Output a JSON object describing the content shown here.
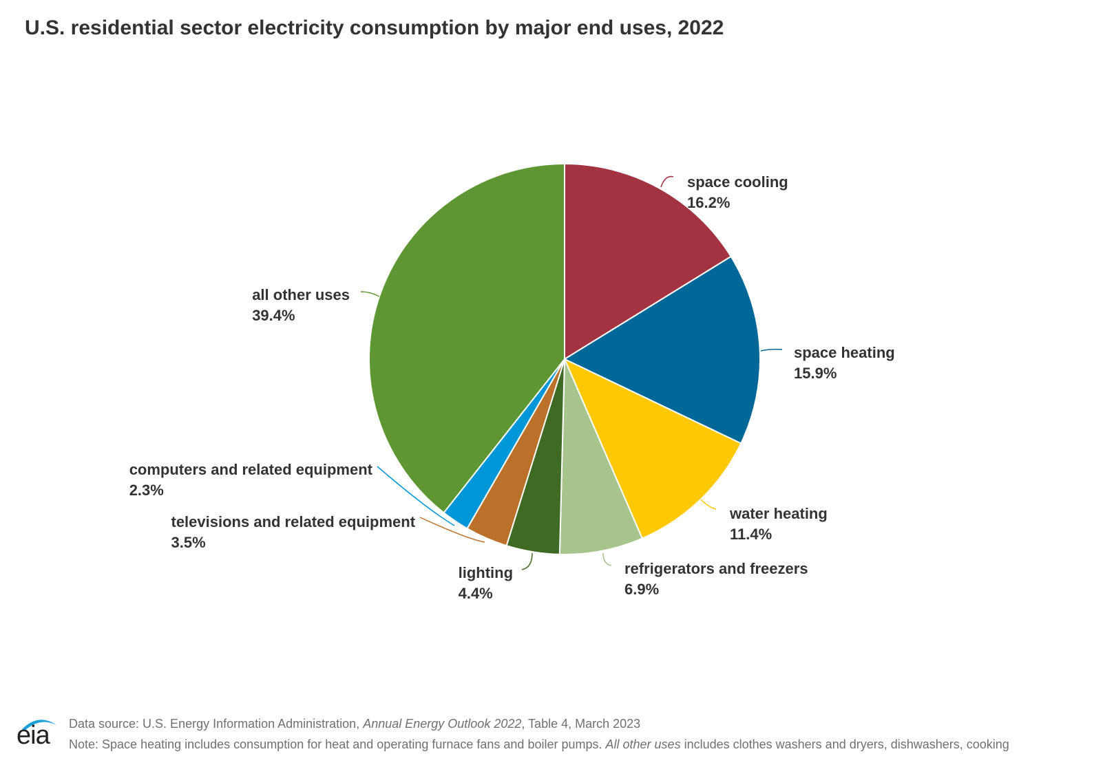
{
  "chart_data": {
    "type": "pie",
    "title": "U.S. residential sector electricity consumption by major end uses, 2022",
    "unit": "%",
    "start": "12 o'clock, clockwise",
    "slices": [
      {
        "name": "space cooling",
        "value": 16.2,
        "value_label": "16.2%",
        "color": "#a33340"
      },
      {
        "name": "space heating",
        "value": 15.9,
        "value_label": "15.9%",
        "color": "#006899"
      },
      {
        "name": "water heating",
        "value": 11.4,
        "value_label": "11.4%",
        "color": "#ffc804"
      },
      {
        "name": "refrigerators and freezers",
        "value": 6.9,
        "value_label": "6.9%",
        "color": "#a7c48c"
      },
      {
        "name": "lighting",
        "value": 4.4,
        "value_label": "4.4%",
        "color": "#3e6a23"
      },
      {
        "name": "televisions and related equipment",
        "value": 3.5,
        "value_label": "3.5%",
        "color": "#bb712a"
      },
      {
        "name": "computers and related equipment",
        "value": 2.3,
        "value_label": "2.3%",
        "color": "#0096d7"
      },
      {
        "name": "all other uses",
        "value": 39.4,
        "value_label": "39.4%",
        "color": "#5d9632"
      }
    ]
  },
  "footer": {
    "logo_text": "eia",
    "source_prefix": "Data source: U.S. Energy Information Administration, ",
    "source_italic": "Annual Energy Outlook 2022",
    "source_suffix": ", Table 4, March 2023",
    "note_prefix": "Note: Space heating includes consumption for heat and operating furnace fans and boiler pumps. ",
    "note_italic": "All other uses",
    "note_suffix": " includes clothes washers and dryers, dishwashers, cooking"
  },
  "colors": {
    "title": "#333333",
    "footer_text": "#707070",
    "logo_swoosh": "#1a9fd9"
  }
}
